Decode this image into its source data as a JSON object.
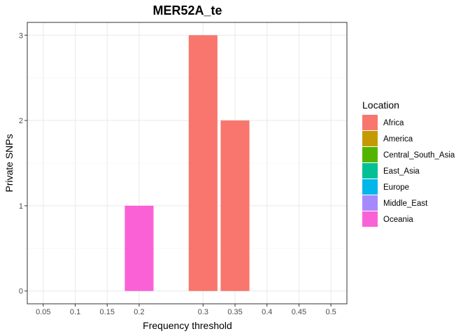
{
  "chart_data": {
    "type": "bar",
    "title": "MER52A_te",
    "xlabel": "Frequency threshold",
    "ylabel": "Private SNPs",
    "x_ticks": [
      "0.05",
      "0.1",
      "0.15",
      "0.2",
      "0.3",
      "0.35",
      "0.4",
      "0.45",
      "0.5"
    ],
    "x_tick_values": [
      0.05,
      0.1,
      0.15,
      0.2,
      0.3,
      0.35,
      0.4,
      0.45,
      0.5
    ],
    "y_ticks": [
      "0",
      "1",
      "2",
      "3"
    ],
    "y_tick_values": [
      0,
      1,
      2,
      3
    ],
    "xlim": [
      0.025,
      0.525
    ],
    "ylim": [
      -0.15,
      3.15
    ],
    "grid": true,
    "legend": {
      "title": "Location",
      "position": "right",
      "entries": [
        {
          "name": "Africa",
          "color": "#F8766D"
        },
        {
          "name": "America",
          "color": "#C49A00"
        },
        {
          "name": "Central_South_Asia",
          "color": "#53B400"
        },
        {
          "name": "East_Asia",
          "color": "#00C094"
        },
        {
          "name": "Europe",
          "color": "#00B6EB"
        },
        {
          "name": "Middle_East",
          "color": "#A58AFF"
        },
        {
          "name": "Oceania",
          "color": "#FB61D7"
        }
      ]
    },
    "bars": [
      {
        "x": 0.2,
        "value": 1,
        "location": "Oceania"
      },
      {
        "x": 0.3,
        "value": 3,
        "location": "Africa"
      },
      {
        "x": 0.35,
        "value": 2,
        "location": "Africa"
      }
    ],
    "bar_width": 0.045
  }
}
